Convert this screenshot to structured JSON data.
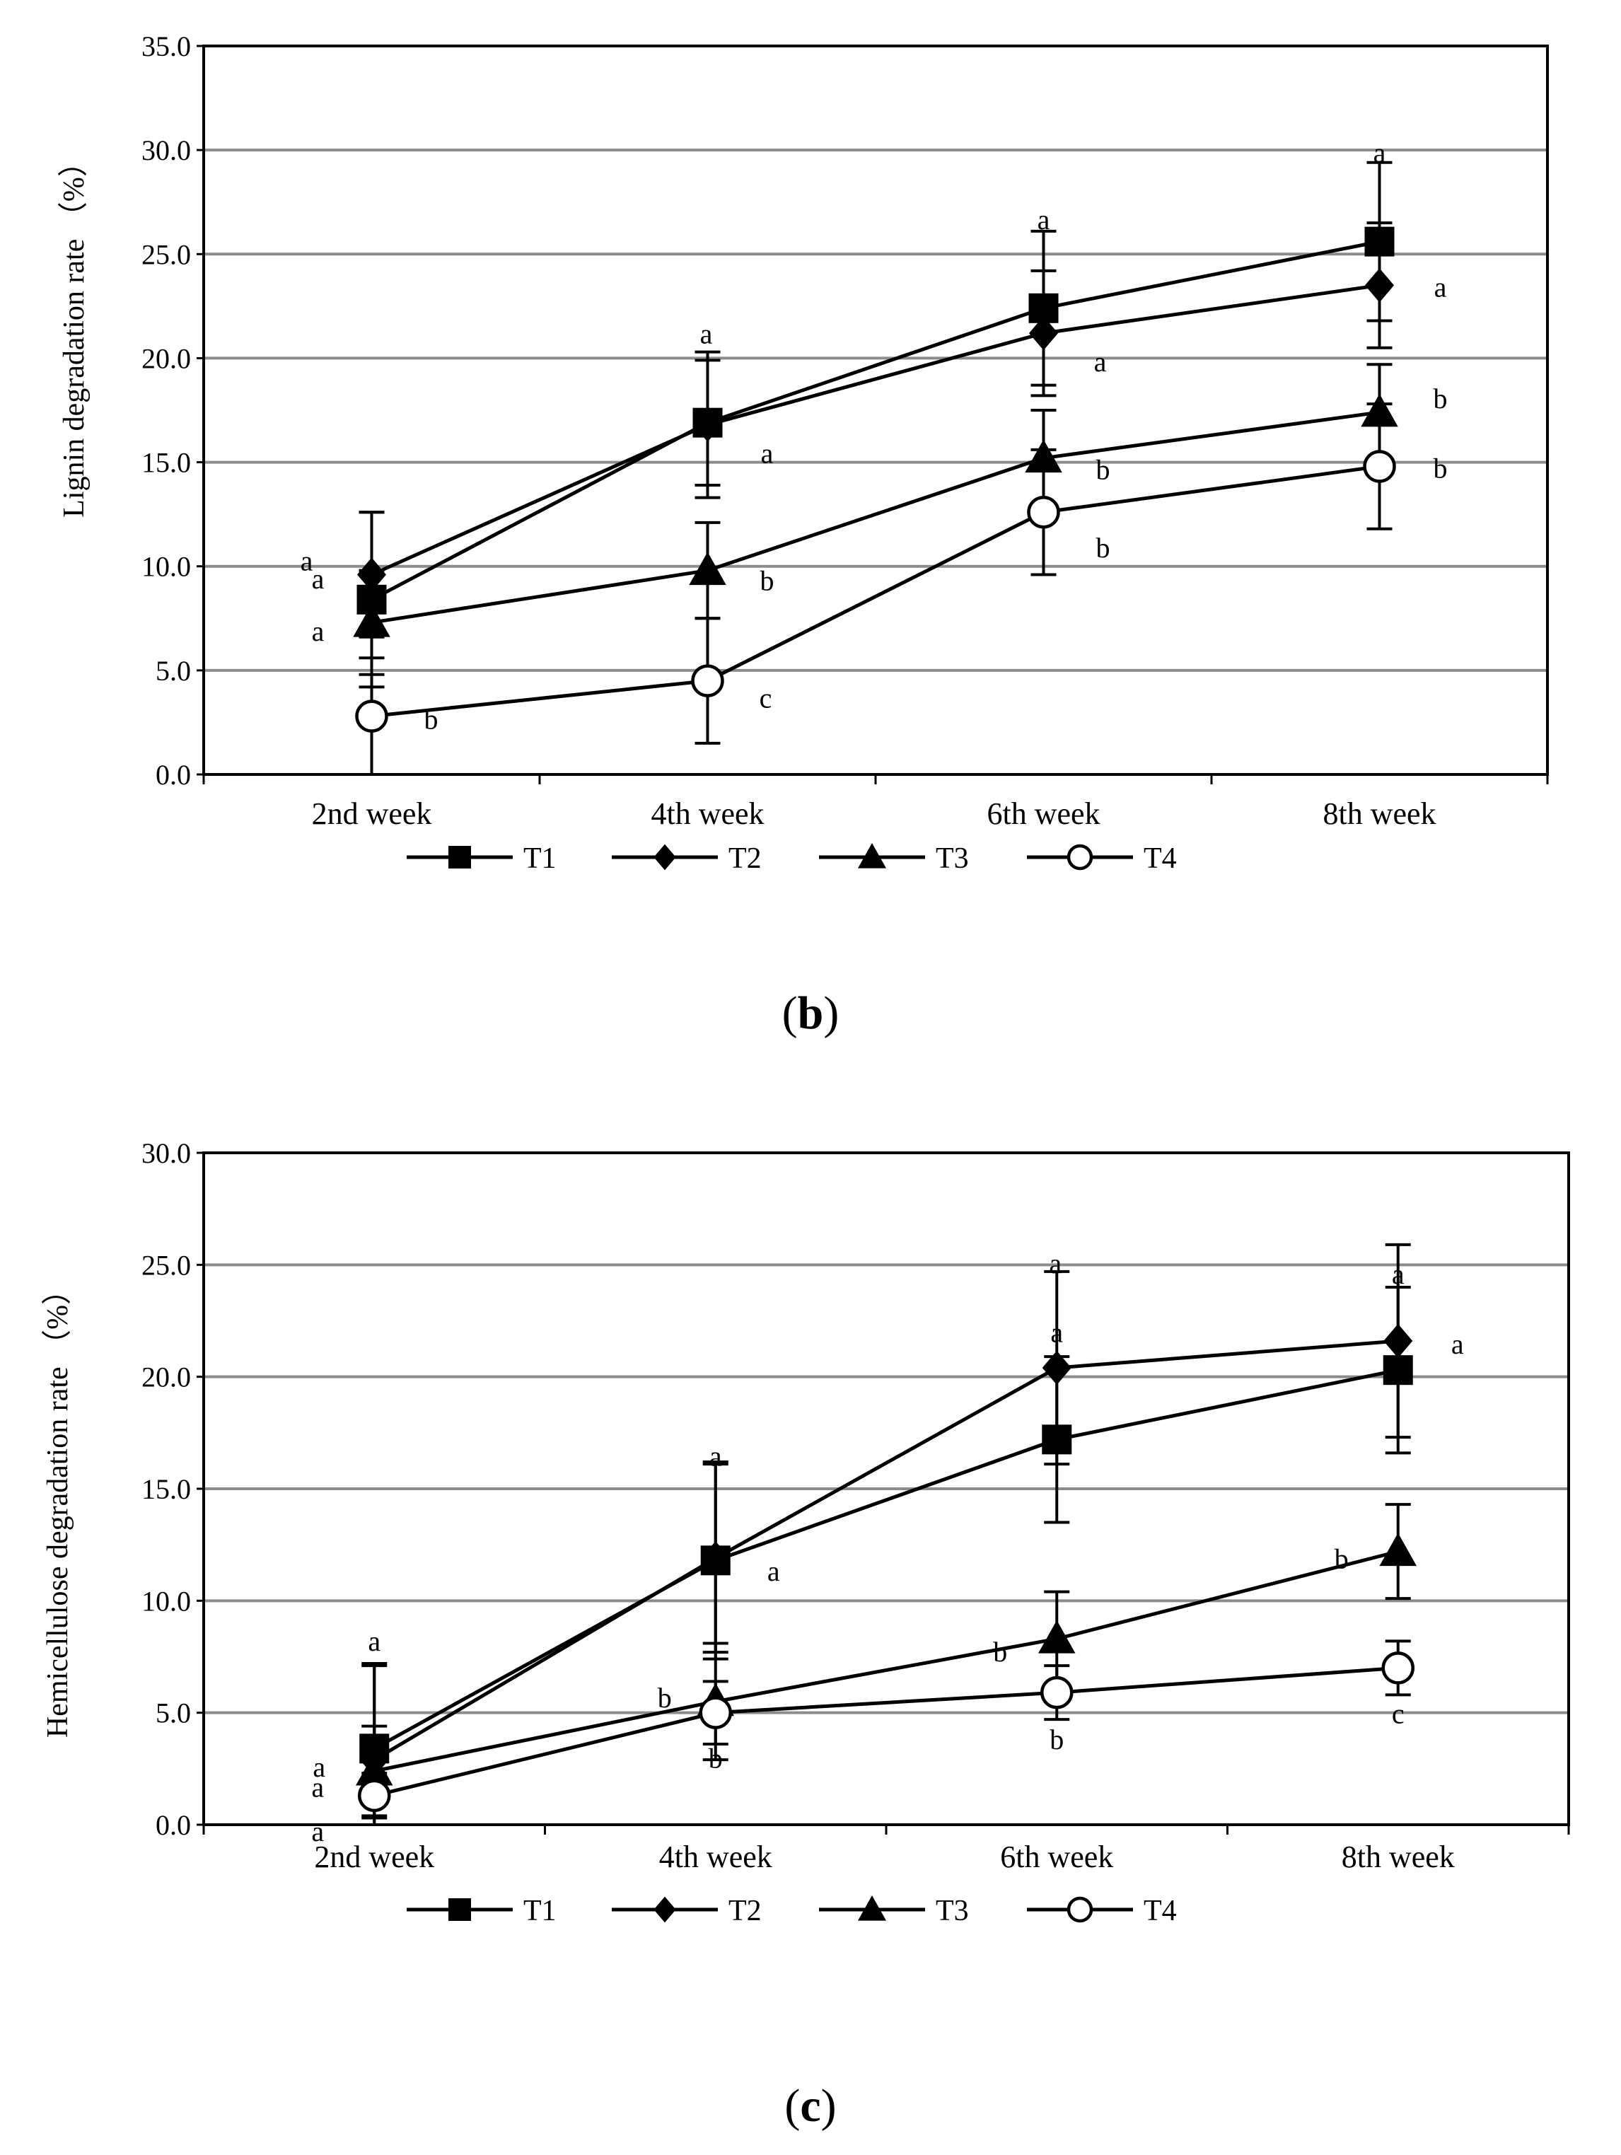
{
  "panels": {
    "b": {
      "open": "(",
      "letter": "b",
      "close": ")"
    },
    "c": {
      "open": "(",
      "letter": "c",
      "close": ")"
    }
  },
  "colors": {
    "line": "#000000",
    "grid": "#8c8c8c",
    "background": "#ffffff",
    "open_marker_fill": "#ffffff"
  },
  "chart_data": [
    {
      "id": "b",
      "type": "line",
      "ylabel": "Lignin degradation rate （%）",
      "xlabel": "",
      "categories": [
        "2nd week",
        "4th week",
        "6th week",
        "8th week"
      ],
      "ylim": [
        0,
        35
      ],
      "yticks": [
        0,
        5,
        10,
        15,
        20,
        25,
        30,
        35
      ],
      "ytick_labels": [
        "0.0",
        "5.0",
        "10.0",
        "15.0",
        "20.0",
        "25.0",
        "30.0",
        "35.0"
      ],
      "grid": true,
      "legend": "bottom",
      "series": [
        {
          "name": "T1",
          "marker": "square",
          "values": [
            8.4,
            16.9,
            22.4,
            25.6
          ],
          "errors": [
            4.2,
            3.0,
            3.7,
            3.8
          ],
          "letters": [
            "a",
            "a",
            "a",
            "a"
          ]
        },
        {
          "name": "T2",
          "marker": "diamond",
          "values": [
            9.6,
            16.8,
            21.2,
            23.5
          ],
          "errors": [
            3.0,
            3.5,
            3.0,
            3.0
          ],
          "letters": [
            "a",
            "a",
            "a",
            "a"
          ]
        },
        {
          "name": "T3",
          "marker": "triangle",
          "values": [
            7.3,
            9.8,
            15.2,
            17.4
          ],
          "errors": [
            2.5,
            2.3,
            2.3,
            2.3
          ],
          "letters": [
            "a",
            "b",
            "b",
            "b"
          ]
        },
        {
          "name": "T4",
          "marker": "circle-open",
          "values": [
            2.8,
            4.5,
            12.6,
            14.8
          ],
          "errors": [
            2.8,
            3.0,
            3.0,
            3.0
          ],
          "letters": [
            "b",
            "c",
            "b",
            "b"
          ]
        }
      ]
    },
    {
      "id": "c",
      "type": "line",
      "ylabel": "Hemicellulose degradation rate （%）",
      "xlabel": "",
      "categories": [
        "2nd week",
        "4th week",
        "6th week",
        "8th week"
      ],
      "ylim": [
        0,
        30
      ],
      "yticks": [
        0,
        5,
        10,
        15,
        20,
        25,
        30
      ],
      "ytick_labels": [
        "0.0",
        "5.0",
        "10.0",
        "15.0",
        "20.0",
        "25.0",
        "30.0"
      ],
      "grid": true,
      "legend": "bottom",
      "series": [
        {
          "name": "T1",
          "marker": "square",
          "values": [
            3.4,
            11.8,
            17.2,
            20.3
          ],
          "errors": [
            3.8,
            4.4,
            3.7,
            3.7
          ],
          "letters": [
            "a",
            "a",
            "a",
            "a"
          ]
        },
        {
          "name": "T2",
          "marker": "diamond",
          "values": [
            2.9,
            11.9,
            20.4,
            21.6
          ],
          "errors": [
            4.2,
            4.2,
            4.3,
            4.3
          ],
          "letters": [
            "a",
            "a",
            "a",
            "a"
          ]
        },
        {
          "name": "T3",
          "marker": "triangle",
          "values": [
            2.4,
            5.5,
            8.3,
            12.2
          ],
          "errors": [
            2.0,
            2.6,
            2.1,
            2.1
          ],
          "letters": [
            "a",
            "b",
            "b",
            "b"
          ]
        },
        {
          "name": "T4",
          "marker": "circle-open",
          "values": [
            1.3,
            5.0,
            5.9,
            7.0
          ],
          "errors": [
            1.0,
            1.4,
            1.2,
            1.2
          ],
          "letters": [
            "a",
            "b",
            "b",
            "c"
          ]
        }
      ]
    }
  ]
}
